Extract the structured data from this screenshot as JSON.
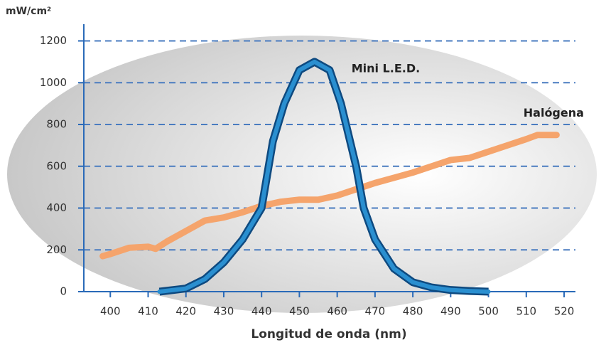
{
  "chart_data": {
    "type": "line",
    "y_label": "mW/cm²",
    "x_label": "Longitud de onda (nm)",
    "xlim": [
      393,
      523
    ],
    "ylim": [
      0,
      1280
    ],
    "xticks": [
      400,
      410,
      420,
      430,
      440,
      450,
      460,
      470,
      480,
      490,
      500,
      510,
      520
    ],
    "yticks": [
      0,
      200,
      400,
      600,
      800,
      1000,
      1200
    ],
    "grid": true,
    "series": [
      {
        "name": "Halógena",
        "color": "#f5a46c",
        "x": [
          398,
          400,
          405,
          410,
          412,
          415,
          420,
          425,
          430,
          435,
          440,
          445,
          450,
          455,
          460,
          465,
          470,
          475,
          480,
          485,
          490,
          495,
          500,
          505,
          510,
          513,
          518
        ],
        "values": [
          170,
          180,
          210,
          215,
          205,
          240,
          290,
          340,
          355,
          380,
          410,
          430,
          440,
          440,
          460,
          490,
          520,
          545,
          570,
          600,
          630,
          640,
          670,
          700,
          730,
          750,
          750
        ]
      },
      {
        "name": "Mini L.E.D.",
        "color": "#2a8fd0",
        "x": [
          413,
          420,
          425,
          430,
          435,
          440,
          443,
          446,
          450,
          454,
          458,
          461,
          465,
          467,
          470,
          475,
          480,
          485,
          490,
          495,
          500
        ],
        "values": [
          0,
          15,
          60,
          140,
          250,
          400,
          720,
          900,
          1060,
          1100,
          1060,
          900,
          600,
          400,
          250,
          110,
          45,
          20,
          8,
          3,
          0
        ]
      }
    ]
  }
}
